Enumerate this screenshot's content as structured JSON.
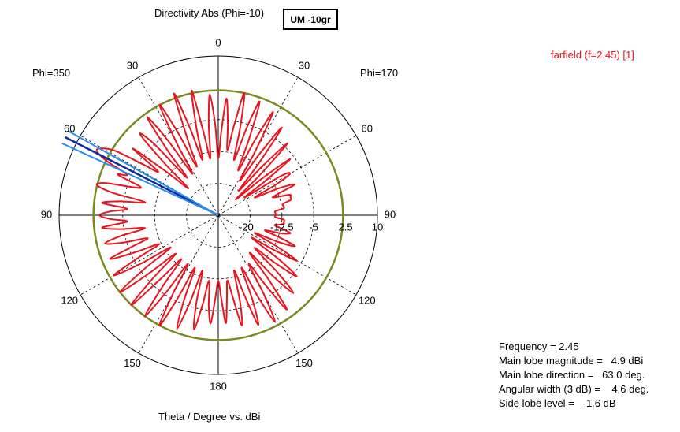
{
  "title": "Directivity Abs (Phi=-10)",
  "badge": "UM -10gr",
  "phi_left": "Phi=350",
  "phi_right": "Phi=170",
  "legend_label": "farfield (f=2.45) [1]",
  "xlabel": "Theta / Degree vs. dBi",
  "info": [
    {
      "label": "Frequency =",
      "value": "2.45"
    },
    {
      "label": "Main lobe magnitude =",
      "value": "4.9 dBi"
    },
    {
      "label": "Main lobe direction =",
      "value": "63.0 deg."
    },
    {
      "label": "Angular width (3 dB) =",
      "value": "4.6 deg."
    },
    {
      "label": "Side lobe level =",
      "value": "-1.6 dB"
    }
  ],
  "colors": {
    "pattern": "#e8141e",
    "reference_circle": "#7a8a22",
    "main_lobe_dark": "#102a9a",
    "main_lobe_light": "#2a8ee8",
    "axis": "#000000",
    "grid": "#000000"
  },
  "chart_data": {
    "type": "line",
    "subtype": "polar",
    "title": "Directivity Abs (Phi=-10)",
    "xlabel": "Theta / Degree vs. dBi",
    "angle_ticks_left": [
      "0",
      "30",
      "60",
      "90",
      "120",
      "150",
      "180"
    ],
    "angle_ticks_right": [
      "30",
      "60",
      "90",
      "120",
      "150"
    ],
    "radial_ticks": [
      "-20",
      "-12.5",
      "-5",
      "2.5",
      "10"
    ],
    "rlim": [
      -27.5,
      10
    ],
    "reference_level_dBi": 1.9,
    "main_lobe": {
      "direction_deg": 63.0,
      "magnitude_dBi": 4.9,
      "width_deg": 4.6
    },
    "series": [
      {
        "name": "farfield (f=2.45) [1]",
        "theta_deg": [
          0,
          2,
          4,
          6,
          8,
          10,
          12,
          14,
          16,
          18,
          20,
          22,
          24,
          26,
          28,
          30,
          32,
          34,
          36,
          38,
          40,
          42,
          44,
          46,
          48,
          50,
          52,
          54,
          56,
          58,
          60,
          62,
          64,
          66,
          68,
          70,
          72,
          74,
          76,
          78,
          80,
          82,
          84,
          86,
          88,
          90,
          92,
          94,
          96,
          98,
          100,
          102,
          104,
          106,
          108,
          110,
          112,
          114,
          116,
          118,
          120,
          122,
          124,
          126,
          128,
          130,
          132,
          134,
          136,
          138,
          140,
          142,
          144,
          146,
          148,
          150,
          152,
          154,
          156,
          158,
          160,
          162,
          164,
          166,
          168,
          170,
          172,
          174,
          176,
          178,
          180
        ],
        "left_dBi": [
          -14,
          -6,
          1,
          -6,
          -14,
          -8,
          2.5,
          -6,
          -14,
          -6,
          3,
          -8,
          -15,
          -6,
          2,
          -8,
          -16,
          -6,
          1,
          -8,
          -16,
          -5,
          -1,
          -10,
          -18,
          -12,
          -2,
          -10,
          -6,
          1,
          4,
          4.9,
          2,
          -4,
          -2,
          -8,
          -6,
          0,
          2,
          -2,
          -10,
          -4,
          0,
          -6,
          -2,
          0.5,
          -2,
          -6,
          0,
          -4,
          -10,
          -4,
          0,
          -4,
          -10,
          -6,
          0,
          -6,
          -12,
          -6,
          1,
          -6,
          -14,
          -6,
          2,
          -6,
          -14,
          -6,
          2,
          -8,
          -14,
          -6,
          2,
          -6,
          -14,
          -6,
          2,
          -6,
          -14,
          -6,
          1,
          -6,
          -14,
          -6,
          0,
          -6,
          -12,
          -6,
          -2,
          -8,
          -12
        ],
        "right_dBi": [
          -14,
          -8,
          0,
          -6,
          -12,
          -6,
          2,
          -6,
          -14,
          -6,
          1,
          -8,
          -16,
          -8,
          0,
          -10,
          -18,
          -10,
          -2,
          -12,
          -20,
          -12,
          -4,
          -14,
          -22,
          -14,
          -6,
          -14,
          -20,
          -10,
          -8,
          -12,
          -18,
          -12,
          -8,
          -12,
          -14,
          -10,
          -10,
          -10,
          -12,
          -12,
          -12,
          -14,
          -14,
          -14,
          -14,
          -12,
          -12,
          -12,
          -14,
          -12,
          -10,
          -12,
          -16,
          -12,
          -8,
          -12,
          -18,
          -12,
          -6,
          -12,
          -18,
          -10,
          -4,
          -10,
          -16,
          -8,
          -2,
          -8,
          -16,
          -8,
          0,
          -8,
          -14,
          -6,
          1,
          -6,
          -14,
          -6,
          0,
          -8,
          -14,
          -6,
          -1,
          -8,
          -12,
          -8,
          -2,
          -8,
          -12
        ]
      }
    ]
  }
}
